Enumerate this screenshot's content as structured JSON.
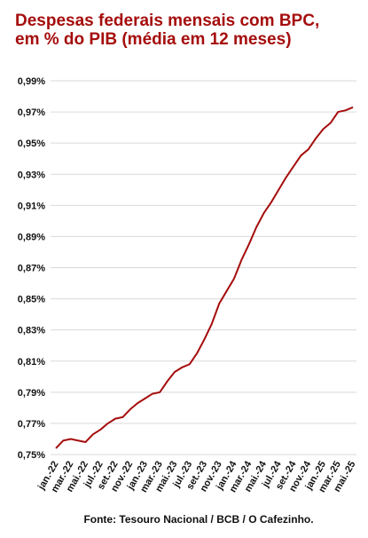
{
  "chart_data": {
    "type": "line",
    "title": [
      "Despesas federais mensais com BPC,",
      "em % do PIB (média em 12 meses)"
    ],
    "source": "Fonte: Tesouro Nacional / BCB / O Cafezinho.",
    "categories": [
      "jan.-22",
      null,
      "mar.-22",
      null,
      "mai.-22",
      null,
      "jul.-22",
      null,
      "set.-22",
      null,
      "nov.-22",
      null,
      "jan.-23",
      null,
      "mar.-23",
      null,
      "mai.-23",
      null,
      "jul.-23",
      null,
      "set.-23",
      null,
      "nov.-23",
      null,
      "jan.-24",
      null,
      "mar.-24",
      null,
      "mai.-24",
      null,
      "jul.-24",
      null,
      "set.-24",
      null,
      "nov.-24",
      null,
      "jan.-25",
      null,
      "mar.-25",
      null,
      "mai.-25"
    ],
    "series": [
      {
        "color": "#a50d0d",
        "values": [
          0.754,
          0.759,
          0.76,
          0.759,
          0.758,
          0.763,
          0.766,
          0.77,
          0.773,
          0.774,
          0.779,
          0.783,
          0.786,
          0.789,
          0.79,
          0.797,
          0.803,
          0.806,
          0.808,
          0.815,
          0.824,
          0.834,
          0.847,
          0.855,
          0.863,
          0.875,
          0.885,
          0.896,
          0.905,
          0.912,
          0.92,
          0.928,
          0.935,
          0.942,
          0.946,
          0.953,
          0.959,
          0.963,
          0.97,
          0.971,
          0.973
        ]
      }
    ],
    "ylim": [
      0.75,
      0.99
    ],
    "yticks": [
      {
        "value": 0.75,
        "label": "0,75%"
      },
      {
        "value": 0.77,
        "label": "0,77%"
      },
      {
        "value": 0.79,
        "label": "0,79%"
      },
      {
        "value": 0.81,
        "label": "0,81%"
      },
      {
        "value": 0.83,
        "label": "0,83%"
      },
      {
        "value": 0.85,
        "label": "0,85%"
      },
      {
        "value": 0.87,
        "label": "0,87%"
      },
      {
        "value": 0.89,
        "label": "0,89%"
      },
      {
        "value": 0.91,
        "label": "0,91%"
      },
      {
        "value": 0.93,
        "label": "0,93%"
      },
      {
        "value": 0.95,
        "label": "0,95%"
      },
      {
        "value": 0.97,
        "label": "0,97%"
      },
      {
        "value": 0.99,
        "label": "0,99%"
      }
    ],
    "grid": true
  }
}
